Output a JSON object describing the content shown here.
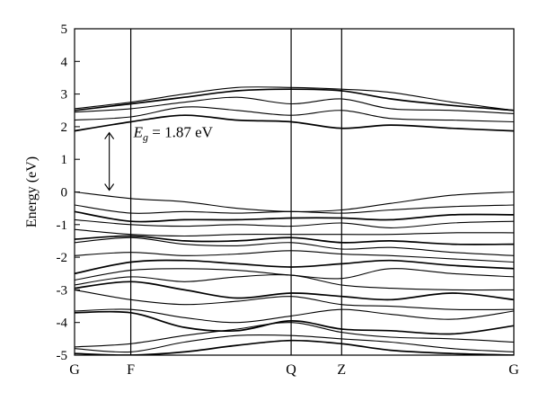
{
  "chart_data": {
    "type": "line",
    "title": "",
    "xlabel": "",
    "ylabel": "Energy (eV)",
    "ylim": [
      -5,
      5
    ],
    "yticks": [
      "-5",
      "-4",
      "-3",
      "-2",
      "-1",
      "0",
      "1",
      "2",
      "3",
      "4",
      "5"
    ],
    "k_path": [
      {
        "label": "G",
        "pos": 0.0
      },
      {
        "label": "F",
        "pos": 0.128
      },
      {
        "label": "Q",
        "pos": 0.493
      },
      {
        "label": "Z",
        "pos": 0.608
      },
      {
        "label": "G",
        "pos": 1.0
      }
    ],
    "grid": false,
    "band_gap": {
      "symbol": "E",
      "subscript": "g",
      "text": " = 1.87 eV",
      "value": 1.87,
      "unit": "eV",
      "vbm": 0.0,
      "cbm": 1.87,
      "k": 0.079
    },
    "k_sample": [
      0.0,
      0.128,
      0.25,
      0.37,
      0.493,
      0.608,
      0.72,
      0.86,
      1.0
    ],
    "bands": [
      {
        "name": "",
        "e": [
          -4.95,
          -5.0,
          -4.9,
          -4.7,
          -4.55,
          -4.65,
          -4.85,
          -4.95,
          -5.0
        ]
      },
      {
        "name": "",
        "e": [
          -4.8,
          -4.9,
          -4.6,
          -4.4,
          -4.4,
          -4.5,
          -4.6,
          -4.8,
          -4.9
        ]
      },
      {
        "name": "",
        "e": [
          -4.75,
          -4.65,
          -4.4,
          -4.2,
          -4.0,
          -4.3,
          -4.45,
          -4.5,
          -4.6
        ]
      },
      {
        "name": "",
        "e": [
          -3.7,
          -3.7,
          -4.15,
          -4.25,
          -3.95,
          -4.2,
          -4.25,
          -4.35,
          -4.1
        ]
      },
      {
        "name": "",
        "e": [
          -3.65,
          -3.6,
          -3.85,
          -4.0,
          -3.8,
          -3.6,
          -3.75,
          -3.9,
          -3.65
        ]
      },
      {
        "name": "",
        "e": [
          -3.0,
          -3.3,
          -3.45,
          -3.35,
          -3.2,
          -3.45,
          -3.5,
          -3.6,
          -3.6
        ]
      },
      {
        "name": "",
        "e": [
          -2.95,
          -2.75,
          -3.0,
          -3.25,
          -3.1,
          -3.2,
          -3.3,
          -3.1,
          -3.3
        ]
      },
      {
        "name": "",
        "e": [
          -2.85,
          -2.6,
          -2.75,
          -2.6,
          -2.55,
          -2.85,
          -2.95,
          -3.0,
          -3.0
        ]
      },
      {
        "name": "",
        "e": [
          -2.7,
          -2.4,
          -2.35,
          -2.4,
          -2.55,
          -2.65,
          -2.35,
          -2.5,
          -2.6
        ]
      },
      {
        "name": "",
        "e": [
          -2.5,
          -2.15,
          -2.1,
          -2.2,
          -2.3,
          -2.2,
          -2.1,
          -2.25,
          -2.35
        ]
      },
      {
        "name": "",
        "e": [
          -1.95,
          -1.85,
          -1.95,
          -1.9,
          -1.8,
          -1.9,
          -1.95,
          -2.05,
          -2.15
        ]
      },
      {
        "name": "",
        "e": [
          -1.55,
          -1.4,
          -1.6,
          -1.65,
          -1.55,
          -1.75,
          -1.7,
          -1.85,
          -1.95
        ]
      },
      {
        "name": "",
        "e": [
          -1.45,
          -1.35,
          -1.5,
          -1.5,
          -1.4,
          -1.55,
          -1.5,
          -1.6,
          -1.6
        ]
      },
      {
        "name": "",
        "e": [
          -1.15,
          -1.3,
          -1.35,
          -1.3,
          -1.3,
          -1.3,
          -1.3,
          -1.25,
          -1.25
        ]
      },
      {
        "name": "",
        "e": [
          -0.85,
          -1.0,
          -1.05,
          -1.0,
          -1.05,
          -0.95,
          -1.1,
          -0.95,
          -0.9
        ]
      },
      {
        "name": "",
        "e": [
          -0.6,
          -0.9,
          -0.85,
          -0.85,
          -0.8,
          -0.8,
          -0.85,
          -0.7,
          -0.7
        ]
      },
      {
        "name": "",
        "e": [
          -0.4,
          -0.65,
          -0.6,
          -0.65,
          -0.6,
          -0.65,
          -0.55,
          -0.45,
          -0.4
        ]
      },
      {
        "name": "",
        "e": [
          0.0,
          -0.2,
          -0.3,
          -0.5,
          -0.6,
          -0.55,
          -0.35,
          -0.1,
          0.0
        ]
      },
      {
        "name": "",
        "e": [
          1.87,
          2.15,
          2.35,
          2.2,
          2.15,
          1.95,
          2.05,
          1.95,
          1.87
        ]
      },
      {
        "name": "",
        "e": [
          2.2,
          2.3,
          2.6,
          2.5,
          2.35,
          2.5,
          2.25,
          2.2,
          2.15
        ]
      },
      {
        "name": "",
        "e": [
          2.45,
          2.55,
          2.75,
          2.9,
          2.7,
          2.85,
          2.55,
          2.5,
          2.4
        ]
      },
      {
        "name": "",
        "e": [
          2.5,
          2.7,
          2.9,
          3.1,
          3.15,
          3.1,
          2.85,
          2.65,
          2.5
        ]
      },
      {
        "name": "",
        "e": [
          2.55,
          2.75,
          3.0,
          3.2,
          3.2,
          3.15,
          3.05,
          2.75,
          2.5
        ]
      }
    ]
  }
}
